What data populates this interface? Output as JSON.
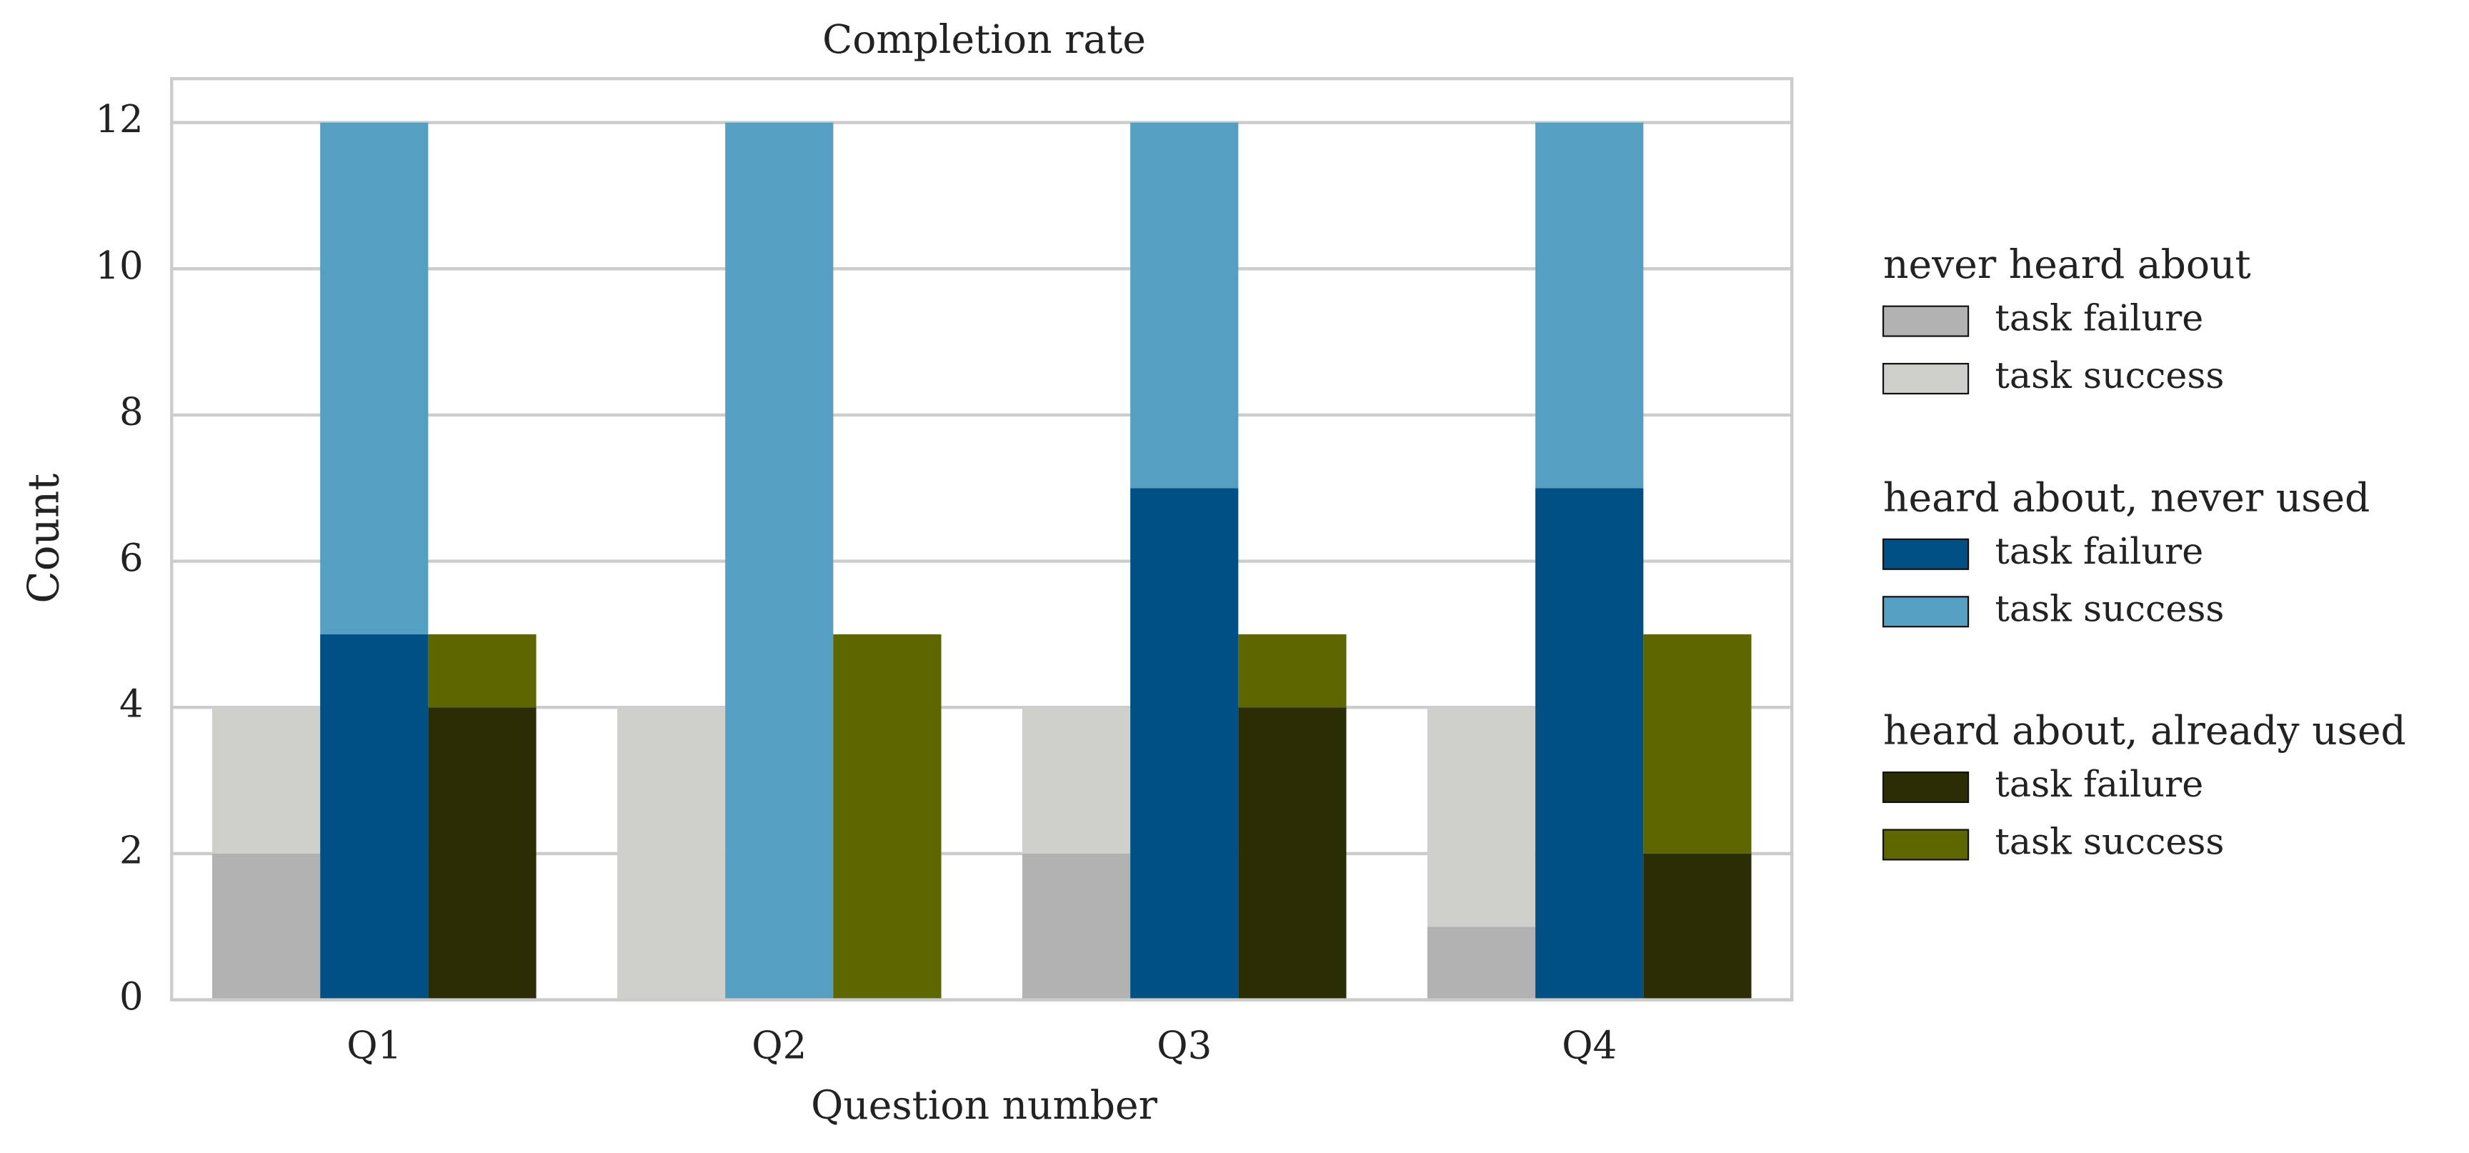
{
  "chart_data": {
    "type": "grouped_stacked_bar",
    "title": "Completion rate",
    "x_label": "Question number",
    "y_label": "Count",
    "categories": [
      "Q1",
      "Q2",
      "Q3",
      "Q4"
    ],
    "groups": [
      {
        "name": "never heard about",
        "series": [
          {
            "name": "task failure",
            "color": "#b2b2b2",
            "values": [
              2,
              0,
              2,
              1
            ]
          },
          {
            "name": "task success",
            "color": "#cfcfcc",
            "values": [
              2,
              4,
              2,
              3
            ]
          }
        ]
      },
      {
        "name": "heard about, never used",
        "series": [
          {
            "name": "task failure",
            "color": "#005086",
            "values": [
              5,
              0,
              7,
              7
            ]
          },
          {
            "name": "task success",
            "color": "#559fc2",
            "values": [
              7,
              12,
              5,
              5
            ]
          }
        ]
      },
      {
        "name": "heard about, already used",
        "series": [
          {
            "name": "task failure",
            "color": "#2b2e04",
            "values": [
              4,
              0,
              4,
              2
            ]
          },
          {
            "name": "task success",
            "color": "#5e6600",
            "values": [
              1,
              5,
              1,
              3
            ]
          }
        ]
      }
    ],
    "ylim": [
      0,
      12.6
    ],
    "yticks": [
      0,
      2,
      4,
      6,
      8,
      10,
      12
    ],
    "grid": true,
    "legend": "right"
  }
}
